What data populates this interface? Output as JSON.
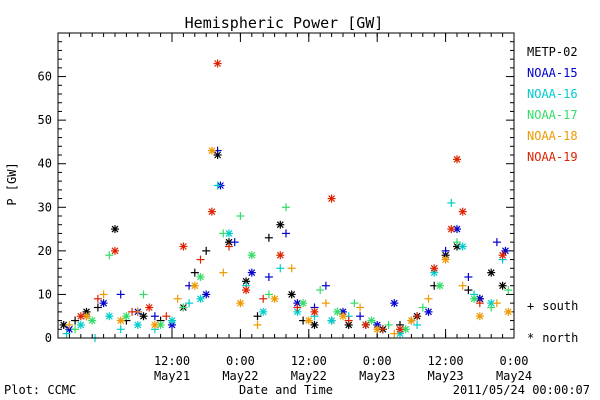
{
  "chart_data": {
    "type": "scatter",
    "title": "Hemispheric Power [GW]",
    "xlabel": "Date and Time",
    "ylabel": "P [GW]",
    "x_unit": "datetime",
    "xlim": [
      "2011-05-20 16:00",
      "2011-05-24 00:00"
    ],
    "ylim": [
      0,
      70
    ],
    "y_ticks": [
      0,
      10,
      20,
      30,
      40,
      50,
      60
    ],
    "x_ticks": [
      {
        "t": "2011-05-21 12:00",
        "time": "12:00",
        "date": "May21"
      },
      {
        "t": "2011-05-22 00:00",
        "time": "0:00",
        "date": "May22"
      },
      {
        "t": "2011-05-22 12:00",
        "time": "12:00",
        "date": "May22"
      },
      {
        "t": "2011-05-23 00:00",
        "time": "0:00",
        "date": "May23"
      },
      {
        "t": "2011-05-23 12:00",
        "time": "12:00",
        "date": "May23"
      },
      {
        "t": "2011-05-24 00:00",
        "time": "0:00",
        "date": "May24"
      }
    ],
    "grid": false,
    "legend_position": "right",
    "marker_legend": [
      {
        "symbol": "+",
        "label": "south"
      },
      {
        "symbol": "*",
        "label": "north"
      }
    ],
    "series": [
      {
        "name": "METP-02",
        "color": "#000000",
        "points": [
          [
            "2011-05-20 17:00",
            3,
            "*"
          ],
          [
            "2011-05-20 19:00",
            4,
            "+"
          ],
          [
            "2011-05-20 21:00",
            6,
            "*"
          ],
          [
            "2011-05-20 23:00",
            7,
            "+"
          ],
          [
            "2011-05-21 02:00",
            25,
            "*"
          ],
          [
            "2011-05-21 04:00",
            4,
            "+"
          ],
          [
            "2011-05-21 07:00",
            5,
            "*"
          ],
          [
            "2011-05-21 10:00",
            4,
            "+"
          ],
          [
            "2011-05-21 14:00",
            7,
            "*"
          ],
          [
            "2011-05-21 16:00",
            15,
            "+"
          ],
          [
            "2011-05-21 18:00",
            20,
            "+"
          ],
          [
            "2011-05-21 20:00",
            42,
            "*"
          ],
          [
            "2011-05-21 22:00",
            22,
            "*"
          ],
          [
            "2011-05-22 01:00",
            13,
            "*"
          ],
          [
            "2011-05-22 03:00",
            5,
            "+"
          ],
          [
            "2011-05-22 05:00",
            23,
            "+"
          ],
          [
            "2011-05-22 07:00",
            26,
            "*"
          ],
          [
            "2011-05-22 09:00",
            10,
            "*"
          ],
          [
            "2011-05-22 11:00",
            4,
            "+"
          ],
          [
            "2011-05-22 13:00",
            3,
            "*"
          ],
          [
            "2011-05-22 16:00",
            4,
            "+"
          ],
          [
            "2011-05-22 19:00",
            3,
            "*"
          ],
          [
            "2011-05-22 22:00",
            3,
            "+"
          ],
          [
            "2011-05-23 01:00",
            2,
            "*"
          ],
          [
            "2011-05-23 04:00",
            3,
            "+"
          ],
          [
            "2011-05-23 07:00",
            5,
            "*"
          ],
          [
            "2011-05-23 10:00",
            12,
            "+"
          ],
          [
            "2011-05-23 12:00",
            19,
            "*"
          ],
          [
            "2011-05-23 14:00",
            21,
            "*"
          ],
          [
            "2011-05-23 16:00",
            11,
            "+"
          ],
          [
            "2011-05-23 18:00",
            9,
            "*"
          ],
          [
            "2011-05-23 20:00",
            15,
            "*"
          ],
          [
            "2011-05-23 22:00",
            12,
            "*"
          ]
        ]
      },
      {
        "name": "NOAA-15",
        "color": "#0000cc",
        "points": [
          [
            "2011-05-20 18:00",
            2,
            "*"
          ],
          [
            "2011-05-20 21:00",
            5,
            "+"
          ],
          [
            "2011-05-21 00:00",
            8,
            "*"
          ],
          [
            "2011-05-21 03:00",
            10,
            "+"
          ],
          [
            "2011-05-21 06:00",
            6,
            "*"
          ],
          [
            "2011-05-21 09:00",
            5,
            "+"
          ],
          [
            "2011-05-21 12:00",
            3,
            "*"
          ],
          [
            "2011-05-21 15:00",
            12,
            "+"
          ],
          [
            "2011-05-21 18:00",
            10,
            "*"
          ],
          [
            "2011-05-21 20:00",
            43,
            "+"
          ],
          [
            "2011-05-21 20:30",
            35,
            "*"
          ],
          [
            "2011-05-21 23:00",
            22,
            "+"
          ],
          [
            "2011-05-22 02:00",
            15,
            "*"
          ],
          [
            "2011-05-22 05:00",
            14,
            "+"
          ],
          [
            "2011-05-22 08:00",
            24,
            "+"
          ],
          [
            "2011-05-22 10:00",
            8,
            "*"
          ],
          [
            "2011-05-22 13:00",
            7,
            "+"
          ],
          [
            "2011-05-22 15:00",
            12,
            "+"
          ],
          [
            "2011-05-22 18:00",
            6,
            "*"
          ],
          [
            "2011-05-22 21:00",
            5,
            "+"
          ],
          [
            "2011-05-23 00:00",
            3,
            "*"
          ],
          [
            "2011-05-23 03:00",
            8,
            "*"
          ],
          [
            "2011-05-23 06:00",
            4,
            "+"
          ],
          [
            "2011-05-23 09:00",
            6,
            "*"
          ],
          [
            "2011-05-23 12:00",
            20,
            "+"
          ],
          [
            "2011-05-23 14:00",
            25,
            "*"
          ],
          [
            "2011-05-23 16:00",
            14,
            "+"
          ],
          [
            "2011-05-23 18:00",
            9,
            "*"
          ],
          [
            "2011-05-23 21:00",
            22,
            "+"
          ],
          [
            "2011-05-23 22:30",
            20,
            "*"
          ]
        ]
      },
      {
        "name": "NOAA-16",
        "color": "#00cccc",
        "points": [
          [
            "2011-05-20 17:30",
            1,
            "+"
          ],
          [
            "2011-05-20 20:00",
            3,
            "*"
          ],
          [
            "2011-05-20 22:30",
            0,
            "+"
          ],
          [
            "2011-05-21 01:00",
            5,
            "*"
          ],
          [
            "2011-05-21 03:00",
            2,
            "+"
          ],
          [
            "2011-05-21 06:00",
            3,
            "*"
          ],
          [
            "2011-05-21 09:00",
            2,
            "+"
          ],
          [
            "2011-05-21 12:00",
            4,
            "*"
          ],
          [
            "2011-05-21 15:00",
            8,
            "+"
          ],
          [
            "2011-05-21 17:00",
            9,
            "*"
          ],
          [
            "2011-05-21 20:00",
            35,
            "+"
          ],
          [
            "2011-05-21 22:00",
            24,
            "*"
          ],
          [
            "2011-05-22 01:00",
            12,
            "+"
          ],
          [
            "2011-05-22 04:00",
            6,
            "*"
          ],
          [
            "2011-05-22 07:00",
            16,
            "+"
          ],
          [
            "2011-05-22 10:00",
            6,
            "*"
          ],
          [
            "2011-05-22 13:00",
            5,
            "+"
          ],
          [
            "2011-05-22 16:00",
            4,
            "*"
          ],
          [
            "2011-05-22 19:00",
            5,
            "+"
          ],
          [
            "2011-05-22 22:00",
            3,
            "*"
          ],
          [
            "2011-05-23 01:00",
            2,
            "+"
          ],
          [
            "2011-05-23 04:00",
            1,
            "*"
          ],
          [
            "2011-05-23 07:00",
            3,
            "+"
          ],
          [
            "2011-05-23 10:00",
            15,
            "*"
          ],
          [
            "2011-05-23 13:00",
            31,
            "+"
          ],
          [
            "2011-05-23 15:00",
            21,
            "*"
          ],
          [
            "2011-05-23 17:00",
            10,
            "+"
          ],
          [
            "2011-05-23 20:00",
            8,
            "*"
          ],
          [
            "2011-05-23 22:00",
            18,
            "+"
          ]
        ]
      },
      {
        "name": "NOAA-17",
        "color": "#33dd66",
        "points": [
          [
            "2011-05-20 19:00",
            2,
            "+"
          ],
          [
            "2011-05-20 22:00",
            4,
            "*"
          ],
          [
            "2011-05-21 01:00",
            19,
            "+"
          ],
          [
            "2011-05-21 04:00",
            5,
            "*"
          ],
          [
            "2011-05-21 07:00",
            10,
            "+"
          ],
          [
            "2011-05-21 10:00",
            3,
            "*"
          ],
          [
            "2011-05-21 14:00",
            7,
            "+"
          ],
          [
            "2011-05-21 17:00",
            14,
            "*"
          ],
          [
            "2011-05-21 21:00",
            24,
            "+"
          ],
          [
            "2011-05-22 00:00",
            28,
            "+"
          ],
          [
            "2011-05-22 02:00",
            19,
            "*"
          ],
          [
            "2011-05-22 05:00",
            10,
            "+"
          ],
          [
            "2011-05-22 08:00",
            30,
            "+"
          ],
          [
            "2011-05-22 11:00",
            8,
            "*"
          ],
          [
            "2011-05-22 14:00",
            11,
            "+"
          ],
          [
            "2011-05-22 17:00",
            6,
            "*"
          ],
          [
            "2011-05-22 20:00",
            8,
            "+"
          ],
          [
            "2011-05-22 23:00",
            4,
            "*"
          ],
          [
            "2011-05-23 02:00",
            3,
            "+"
          ],
          [
            "2011-05-23 05:00",
            2,
            "*"
          ],
          [
            "2011-05-23 08:00",
            7,
            "+"
          ],
          [
            "2011-05-23 11:00",
            12,
            "*"
          ],
          [
            "2011-05-23 14:00",
            22,
            "+"
          ],
          [
            "2011-05-23 17:00",
            9,
            "*"
          ],
          [
            "2011-05-23 20:00",
            7,
            "+"
          ],
          [
            "2011-05-23 23:00",
            11,
            "+"
          ]
        ]
      },
      {
        "name": "NOAA-18",
        "color": "#ee9900",
        "points": [
          [
            "2011-05-20 18:00",
            3,
            "+"
          ],
          [
            "2011-05-20 21:00",
            5,
            "*"
          ],
          [
            "2011-05-21 00:00",
            10,
            "+"
          ],
          [
            "2011-05-21 03:00",
            4,
            "*"
          ],
          [
            "2011-05-21 06:00",
            6,
            "+"
          ],
          [
            "2011-05-21 09:00",
            3,
            "*"
          ],
          [
            "2011-05-21 13:00",
            9,
            "+"
          ],
          [
            "2011-05-21 16:00",
            12,
            "*"
          ],
          [
            "2011-05-21 19:00",
            43,
            "*"
          ],
          [
            "2011-05-21 21:00",
            15,
            "+"
          ],
          [
            "2011-05-22 00:00",
            8,
            "*"
          ],
          [
            "2011-05-22 03:00",
            3,
            "+"
          ],
          [
            "2011-05-22 06:00",
            9,
            "*"
          ],
          [
            "2011-05-22 09:00",
            16,
            "+"
          ],
          [
            "2011-05-22 12:00",
            4,
            "*"
          ],
          [
            "2011-05-22 15:00",
            8,
            "+"
          ],
          [
            "2011-05-22 18:00",
            5,
            "*"
          ],
          [
            "2011-05-22 21:00",
            7,
            "+"
          ],
          [
            "2011-05-23 00:00",
            2,
            "*"
          ],
          [
            "2011-05-23 03:00",
            1,
            "+"
          ],
          [
            "2011-05-23 06:00",
            4,
            "*"
          ],
          [
            "2011-05-23 09:00",
            9,
            "+"
          ],
          [
            "2011-05-23 12:00",
            18,
            "*"
          ],
          [
            "2011-05-23 15:00",
            12,
            "+"
          ],
          [
            "2011-05-23 18:00",
            5,
            "*"
          ],
          [
            "2011-05-23 21:00",
            8,
            "+"
          ],
          [
            "2011-05-23 23:00",
            6,
            "*"
          ]
        ]
      },
      {
        "name": "NOAA-19",
        "color": "#dd2200",
        "points": [
          [
            "2011-05-20 20:00",
            5,
            "*"
          ],
          [
            "2011-05-20 23:00",
            9,
            "+"
          ],
          [
            "2011-05-21 02:00",
            20,
            "*"
          ],
          [
            "2011-05-21 05:00",
            6,
            "+"
          ],
          [
            "2011-05-21 08:00",
            7,
            "*"
          ],
          [
            "2011-05-21 11:00",
            5,
            "+"
          ],
          [
            "2011-05-21 14:00",
            21,
            "*"
          ],
          [
            "2011-05-21 17:00",
            18,
            "+"
          ],
          [
            "2011-05-21 19:00",
            29,
            "*"
          ],
          [
            "2011-05-21 20:00",
            63,
            "*"
          ],
          [
            "2011-05-21 22:00",
            21,
            "+"
          ],
          [
            "2011-05-22 01:00",
            11,
            "*"
          ],
          [
            "2011-05-22 04:00",
            9,
            "+"
          ],
          [
            "2011-05-22 07:00",
            19,
            "*"
          ],
          [
            "2011-05-22 10:00",
            7,
            "+"
          ],
          [
            "2011-05-22 13:00",
            6,
            "*"
          ],
          [
            "2011-05-22 16:00",
            32,
            "*"
          ],
          [
            "2011-05-22 19:00",
            4,
            "+"
          ],
          [
            "2011-05-22 22:00",
            3,
            "*"
          ],
          [
            "2011-05-23 01:00",
            2,
            "+"
          ],
          [
            "2011-05-23 04:00",
            2,
            "*"
          ],
          [
            "2011-05-23 07:00",
            5,
            "+"
          ],
          [
            "2011-05-23 10:00",
            16,
            "*"
          ],
          [
            "2011-05-23 13:00",
            25,
            "*"
          ],
          [
            "2011-05-23 14:00",
            41,
            "*"
          ],
          [
            "2011-05-23 15:00",
            29,
            "*"
          ],
          [
            "2011-05-23 18:00",
            8,
            "+"
          ],
          [
            "2011-05-23 22:00",
            19,
            "*"
          ]
        ]
      }
    ]
  },
  "footer": {
    "plot_credit": "Plot: CCMC",
    "timestamp": "2011/05/24 00:00:07"
  }
}
